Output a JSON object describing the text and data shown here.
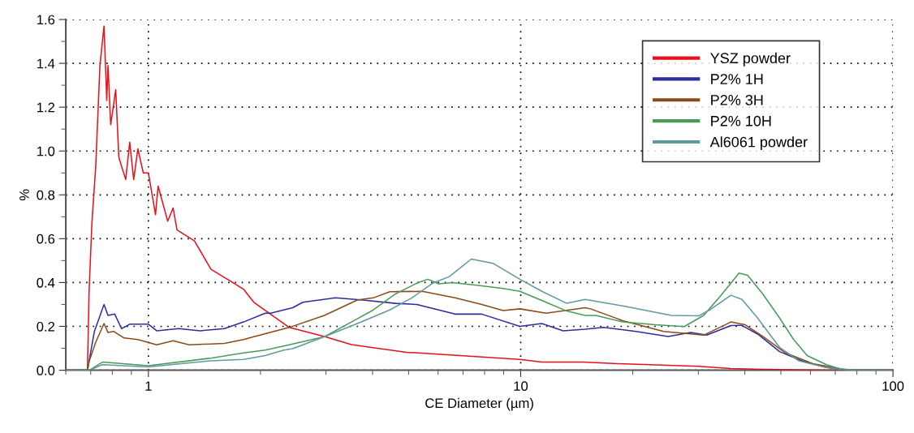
{
  "chart_data": {
    "type": "line",
    "xlabel": "CE Diameter (µm)",
    "ylabel": "%",
    "log": "x",
    "xlim": [
      0.6,
      100
    ],
    "xticks": [
      1,
      10,
      100
    ],
    "ylim": [
      0,
      1.6
    ],
    "yticks": [
      {
        "value": 0,
        "label": "0.0"
      },
      {
        "value": 0.2,
        "label": "0.2"
      },
      {
        "value": 0.4,
        "label": "0.4"
      },
      {
        "value": 0.6,
        "label": "0.6"
      },
      {
        "value": 0.8,
        "label": "0.8"
      },
      {
        "value": 1.0,
        "label": "1.0"
      },
      {
        "value": 1.2,
        "label": "1.2"
      },
      {
        "value": 1.4,
        "label": "1.4"
      },
      {
        "value": 1.6,
        "label": "1.6"
      }
    ],
    "grid": true,
    "legend": "top right",
    "marker": "none",
    "line_style": "solid",
    "series": [
      {
        "name": "YSZ powder",
        "color": "#e8101a",
        "x": [
          0.6,
          0.686,
          0.693,
          0.705,
          0.722,
          0.741,
          0.76,
          0.773,
          0.779,
          0.792,
          0.817,
          0.833,
          0.869,
          0.891,
          0.913,
          0.937,
          0.969,
          1.0,
          1.045,
          1.062,
          1.127,
          1.165,
          1.194,
          1.33,
          1.473,
          1.684,
          1.8,
          1.92,
          2.39,
          2.97,
          3.51,
          4.93,
          6.87,
          9.95,
          11.4,
          14.7,
          18.2,
          30.1,
          36.7,
          44.7,
          68.9,
          100
        ],
        "values": [
          0,
          0,
          0.36,
          0.67,
          0.93,
          1.39,
          1.57,
          1.23,
          1.39,
          1.12,
          1.28,
          0.97,
          0.87,
          1.04,
          0.87,
          1.01,
          0.9,
          0.9,
          0.71,
          0.84,
          0.68,
          0.74,
          0.64,
          0.59,
          0.46,
          0.4,
          0.37,
          0.31,
          0.195,
          0.154,
          0.117,
          0.082,
          0.067,
          0.049,
          0.037,
          0.037,
          0.03,
          0.018,
          0.008,
          0.004,
          0,
          0
        ]
      },
      {
        "name": "P2% 1H",
        "color": "#2e2e9a",
        "x": [
          0.6,
          0.686,
          0.716,
          0.76,
          0.779,
          0.812,
          0.847,
          0.891,
          1.0,
          1.053,
          1.205,
          1.378,
          1.6,
          1.8,
          2.06,
          2.13,
          2.44,
          2.6,
          3.18,
          3.76,
          4.61,
          5.26,
          6.66,
          7.86,
          9.95,
          11.4,
          13.0,
          14.9,
          16.7,
          20.4,
          24.9,
          28.6,
          31.6,
          36.7,
          39.2,
          43.3,
          49.6,
          56.9,
          66.3,
          75.5,
          100
        ],
        "values": [
          0,
          0,
          0.177,
          0.3,
          0.25,
          0.256,
          0.19,
          0.21,
          0.21,
          0.18,
          0.19,
          0.18,
          0.19,
          0.22,
          0.26,
          0.26,
          0.285,
          0.31,
          0.33,
          0.32,
          0.305,
          0.3,
          0.256,
          0.256,
          0.2,
          0.213,
          0.18,
          0.187,
          0.195,
          0.177,
          0.154,
          0.172,
          0.16,
          0.204,
          0.205,
          0.165,
          0.085,
          0.043,
          0.012,
          0,
          0
        ]
      },
      {
        "name": "P2% 3H",
        "color": "#8b4a1a",
        "x": [
          0.6,
          0.686,
          0.693,
          0.722,
          0.76,
          0.779,
          0.806,
          0.861,
          0.937,
          1.053,
          1.165,
          1.288,
          1.6,
          1.8,
          1.92,
          2.39,
          2.97,
          3.64,
          4.02,
          4.45,
          5.44,
          6.66,
          7.86,
          8.97,
          9.95,
          11.7,
          14.9,
          15.4,
          18.8,
          24.2,
          31.0,
          36.7,
          40.1,
          44.7,
          51.3,
          60.9,
          75.5,
          100
        ],
        "values": [
          0,
          0,
          0.04,
          0.128,
          0.213,
          0.172,
          0.177,
          0.147,
          0.14,
          0.116,
          0.134,
          0.116,
          0.122,
          0.14,
          0.153,
          0.195,
          0.25,
          0.32,
          0.33,
          0.358,
          0.36,
          0.33,
          0.3,
          0.272,
          0.28,
          0.26,
          0.285,
          0.28,
          0.226,
          0.177,
          0.16,
          0.22,
          0.207,
          0.154,
          0.08,
          0.03,
          0,
          0
        ]
      },
      {
        "name": "P2% 10H",
        "color": "#4a9a5a",
        "x": [
          0.6,
          0.693,
          0.753,
          1.0,
          1.47,
          1.8,
          2.06,
          2.31,
          2.97,
          3.51,
          4.02,
          4.61,
          5.26,
          5.63,
          6.02,
          6.55,
          7.86,
          8.97,
          9.95,
          11.7,
          13.3,
          14.9,
          15.9,
          18.8,
          23.0,
          27.5,
          31.0,
          34.3,
          38.6,
          40.7,
          44.7,
          49.6,
          54.1,
          58.8,
          66.3,
          72.0,
          79.4,
          100
        ],
        "values": [
          0,
          0,
          0.037,
          0.021,
          0.055,
          0.079,
          0.092,
          0.11,
          0.153,
          0.22,
          0.275,
          0.348,
          0.397,
          0.415,
          0.394,
          0.4,
          0.385,
          0.373,
          0.36,
          0.31,
          0.27,
          0.25,
          0.25,
          0.22,
          0.207,
          0.199,
          0.25,
          0.336,
          0.443,
          0.433,
          0.348,
          0.238,
          0.14,
          0.067,
          0.025,
          0.007,
          0,
          0
        ]
      },
      {
        "name": "Al6061 powder",
        "color": "#5e9a9e",
        "x": [
          0.6,
          0.693,
          0.753,
          1.0,
          1.47,
          1.8,
          2.06,
          2.31,
          2.44,
          2.97,
          3.64,
          4.45,
          5.1,
          5.81,
          6.43,
          7.37,
          8.42,
          9.95,
          11.4,
          13.3,
          14.9,
          18.8,
          25.4,
          30.1,
          32.2,
          36.7,
          39.3,
          43.3,
          49.6,
          55.8,
          66.3,
          75.5,
          100
        ],
        "values": [
          0,
          0,
          0.025,
          0.015,
          0.043,
          0.049,
          0.067,
          0.092,
          0.098,
          0.153,
          0.213,
          0.275,
          0.33,
          0.397,
          0.427,
          0.507,
          0.488,
          0.415,
          0.36,
          0.305,
          0.323,
          0.293,
          0.25,
          0.248,
          0.275,
          0.342,
          0.323,
          0.238,
          0.104,
          0.043,
          0.012,
          0,
          0
        ]
      }
    ]
  }
}
